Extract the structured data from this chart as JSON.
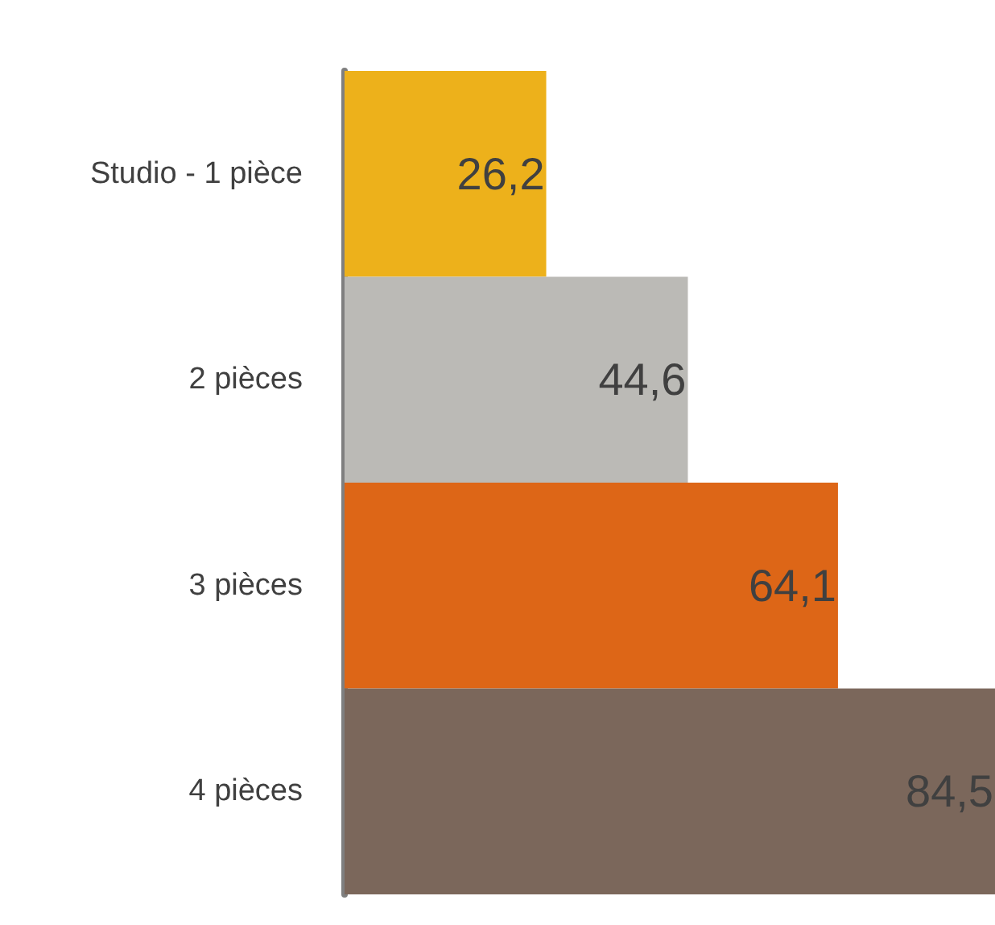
{
  "chart_data": {
    "type": "bar",
    "orientation": "horizontal",
    "categories": [
      "Studio - 1 pièce",
      "2 pièces",
      "3 pièces",
      "4 pièces"
    ],
    "values": [
      26.2,
      44.6,
      64.1,
      84.5
    ],
    "colors": [
      "#edb11b",
      "#bbbab6",
      "#dd6617",
      "#7b675b"
    ],
    "value_labels": [
      "26,2",
      "44,6",
      "64,1",
      "84,5"
    ]
  }
}
